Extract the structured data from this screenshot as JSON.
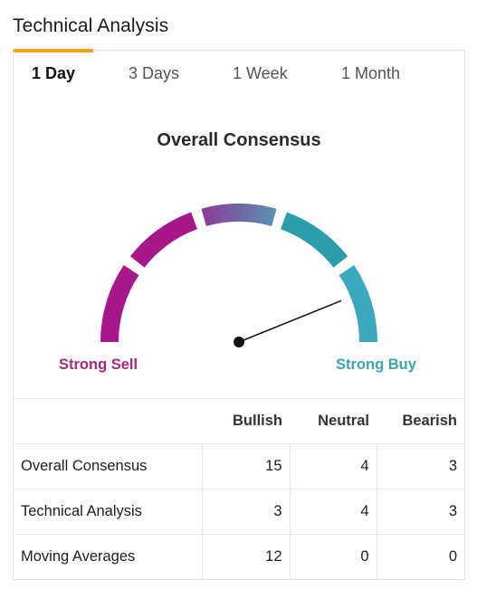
{
  "widget": {
    "title": "Technical Analysis"
  },
  "tabs": [
    {
      "label": "1 Day",
      "active": true
    },
    {
      "label": "3 Days",
      "active": false
    },
    {
      "label": "1 Week",
      "active": false
    },
    {
      "label": "1 Month",
      "active": false
    }
  ],
  "gauge": {
    "title": "Overall Consensus",
    "sell_label": "Strong Sell",
    "buy_label": "Strong Buy",
    "segments": [
      "Strong Sell",
      "Sell",
      "Neutral",
      "Buy",
      "Strong Buy"
    ],
    "active_segment": "Strong Buy",
    "colors": {
      "strong_sell": "#a8178a",
      "sell": "#a8178a",
      "neutral_start": "#8a3d9a",
      "neutral_end": "#5a8fb0",
      "buy": "#2a9fab",
      "strong_buy": "#3ba9bd",
      "needle": "#111111",
      "indicator": "#f7a21b"
    }
  },
  "summary": {
    "headers": [
      "",
      "Bullish",
      "Neutral",
      "Bearish"
    ],
    "rows": [
      {
        "label": "Overall Consensus",
        "bullish": "15",
        "neutral": "4",
        "bearish": "3"
      },
      {
        "label": "Technical Analysis",
        "bullish": "3",
        "neutral": "4",
        "bearish": "3"
      },
      {
        "label": "Moving Averages",
        "bullish": "12",
        "neutral": "0",
        "bearish": "0"
      }
    ]
  }
}
